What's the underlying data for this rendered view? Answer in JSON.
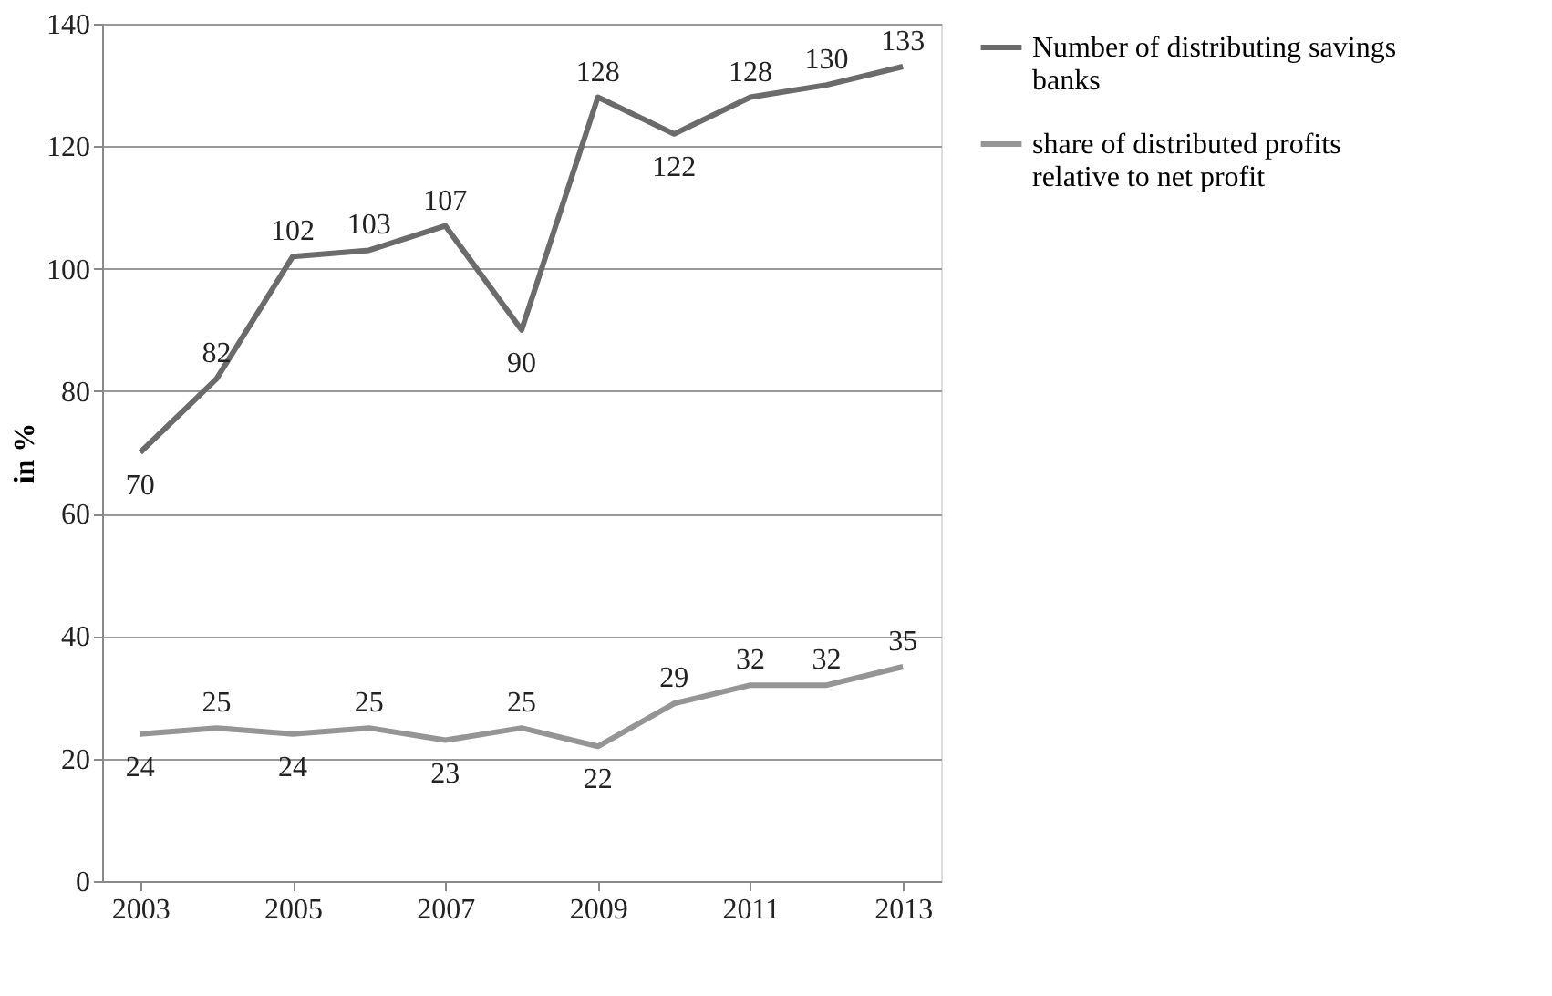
{
  "chart_data": {
    "type": "line",
    "ylabel": "in %",
    "x": [
      2003,
      2004,
      2005,
      2006,
      2007,
      2008,
      2009,
      2010,
      2011,
      2012,
      2013
    ],
    "series": [
      {
        "name": "Number of distributing savings banks",
        "color": "#6b6b6b",
        "values": [
          70,
          82,
          102,
          103,
          107,
          90,
          128,
          122,
          128,
          130,
          133
        ]
      },
      {
        "name": "share of distributed profits relative to net profit",
        "color": "#959595",
        "values": [
          24,
          25,
          24,
          25,
          23,
          25,
          22,
          29,
          32,
          32,
          35
        ]
      }
    ],
    "xlim": [
      2002.5,
      2013.5
    ],
    "xticks": [
      2003,
      2005,
      2007,
      2009,
      2011,
      2013
    ],
    "ylim": [
      0,
      140
    ],
    "yticks": [
      0,
      20,
      40,
      60,
      80,
      100,
      120,
      140
    ],
    "grid": "y",
    "legend": "right",
    "marker": "none",
    "line_style": "solid",
    "data_labels": true
  }
}
